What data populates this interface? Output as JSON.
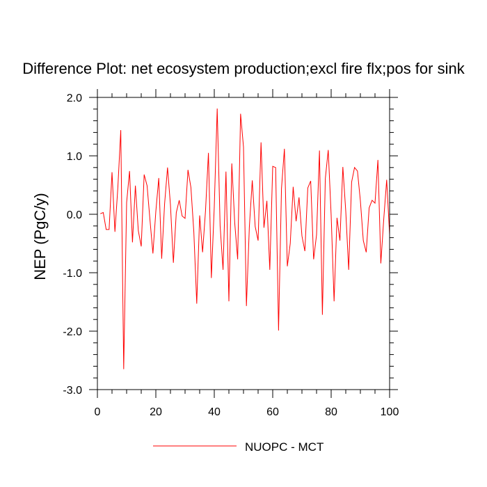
{
  "chart_data": {
    "type": "line",
    "title": "Difference Plot: net ecosystem production;excl fire flx;pos for sink",
    "xlabel": "",
    "ylabel": "NEP  (PgC/y)",
    "xlim": [
      0,
      100
    ],
    "ylim": [
      -3.0,
      2.0
    ],
    "xticks": [
      0,
      20,
      40,
      60,
      80,
      100
    ],
    "xtick_labels": [
      "0",
      "20",
      "40",
      "60",
      "80",
      "100"
    ],
    "yticks": [
      -3.0,
      -2.0,
      -1.0,
      0.0,
      1.0,
      2.0
    ],
    "ytick_labels": [
      "-3.0",
      "-2.0",
      "-1.0",
      "0.0",
      "1.0",
      "2.0"
    ],
    "grid": false,
    "legend_position": "bottom-center",
    "series": [
      {
        "name": "NUOPC - MCT",
        "color": "#ff0000",
        "x": [
          1,
          2,
          3,
          4,
          5,
          6,
          7,
          8,
          9,
          10,
          11,
          12,
          13,
          14,
          15,
          16,
          17,
          18,
          19,
          20,
          21,
          22,
          23,
          24,
          25,
          26,
          27,
          28,
          29,
          30,
          31,
          32,
          33,
          34,
          35,
          36,
          37,
          38,
          39,
          40,
          41,
          42,
          43,
          44,
          45,
          46,
          47,
          48,
          49,
          50,
          51,
          52,
          53,
          54,
          55,
          56,
          57,
          58,
          59,
          60,
          61,
          62,
          63,
          64,
          65,
          66,
          67,
          68,
          69,
          70,
          71,
          72,
          73,
          74,
          75,
          76,
          77,
          78,
          79,
          80,
          81,
          82,
          83,
          84,
          85,
          86,
          87,
          88,
          89,
          90,
          91,
          92,
          93,
          94,
          95,
          96,
          97,
          98,
          99,
          100
        ],
        "values": [
          0.01,
          0.03,
          -0.26,
          -0.26,
          0.72,
          -0.3,
          0.46,
          1.44,
          -2.65,
          0.2,
          0.74,
          -0.48,
          0.49,
          -0.28,
          -0.55,
          0.68,
          0.49,
          -0.1,
          -0.67,
          0.05,
          0.62,
          -0.76,
          0.18,
          0.8,
          0.16,
          -0.83,
          0.03,
          0.24,
          -0.03,
          -0.07,
          0.76,
          0.46,
          -0.3,
          -1.53,
          -0.02,
          -0.65,
          0.06,
          1.05,
          -1.09,
          0.13,
          1.81,
          -0.2,
          -0.95,
          0.73,
          -1.49,
          0.87,
          -0.15,
          -0.77,
          1.72,
          1.15,
          -1.57,
          -0.22,
          0.58,
          -0.21,
          -0.45,
          1.23,
          -0.23,
          0.23,
          -0.95,
          0.82,
          0.8,
          -1.99,
          0.44,
          1.12,
          -0.89,
          -0.5,
          0.47,
          -0.12,
          0.29,
          -0.37,
          -0.63,
          0.45,
          0.57,
          -0.77,
          -0.35,
          1.09,
          -1.72,
          0.61,
          1.1,
          -0.02,
          -1.49,
          -0.06,
          -0.45,
          0.81,
          0.05,
          -0.95,
          0.55,
          0.8,
          0.74,
          0.23,
          -0.45,
          -0.65,
          0.11,
          0.24,
          0.19,
          0.93,
          -0.84,
          -0.08,
          0.59,
          -0.35
        ]
      }
    ]
  }
}
